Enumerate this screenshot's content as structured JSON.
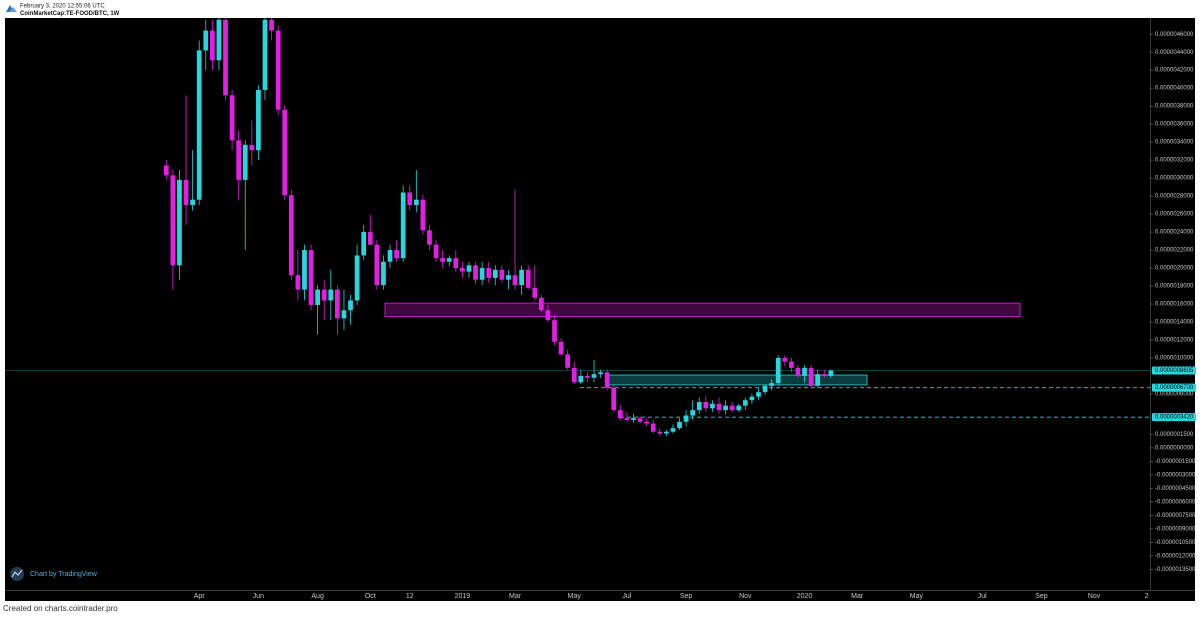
{
  "header": {
    "timestamp": "February 3, 2020 12:55:06 UTC"
  },
  "footer": "Created on charts.cointrader.pro",
  "watermark": "Chart by TradingView",
  "chart_data": {
    "type": "candlestick",
    "title": "CoinMarketCap:TE-FOOD/BTC, 1W",
    "up_color": "#26d7dd",
    "down_color": "#e41fe4",
    "grid": false,
    "categories": [
      null,
      null,
      null,
      null,
      null,
      "Apr",
      null,
      null,
      null,
      null,
      null,
      null,
      null,
      null,
      "Jun",
      null,
      null,
      null,
      null,
      null,
      null,
      null,
      null,
      "Aug",
      null,
      null,
      null,
      null,
      null,
      null,
      null,
      "Oct",
      null,
      null,
      null,
      null,
      null,
      "12",
      null,
      null,
      null,
      null,
      null,
      null,
      null,
      "2019",
      null,
      null,
      null,
      null,
      null,
      null,
      null,
      "Mar",
      null,
      null,
      null,
      null,
      null,
      null,
      null,
      null,
      "May",
      null,
      null,
      null,
      null,
      null,
      null,
      null,
      "Jul",
      null,
      null,
      null,
      null,
      null,
      null,
      null,
      null,
      "Sep",
      null,
      null,
      null,
      null,
      null,
      null,
      null,
      null,
      "Nov",
      null,
      null,
      null,
      null,
      null,
      null,
      null,
      null,
      "2020",
      null,
      null,
      null,
      null,
      null,
      null,
      null,
      "Mar",
      null,
      null,
      null,
      null,
      null,
      null,
      null,
      null,
      "May",
      null,
      null,
      null,
      null,
      null,
      null,
      null,
      null,
      null,
      "Jul",
      null,
      null,
      null,
      null,
      null,
      null,
      null,
      null,
      "Sep",
      null,
      null,
      null,
      null,
      null,
      null,
      null,
      "Nov",
      null,
      null,
      null,
      null,
      null,
      null,
      null,
      "2"
    ],
    "open": [
      3.14e-06,
      3.03e-06,
      2.03e-06,
      2.98e-06,
      2.7e-06,
      2.76e-06,
      4.42e-06,
      4.64e-06,
      4.31e-06,
      4.76e-06,
      3.92e-06,
      3.42e-06,
      2.98e-06,
      3.37e-06,
      3.31e-06,
      3.98e-06,
      4.76e-06,
      4.64e-06,
      3.76e-06,
      2.81e-06,
      1.92e-06,
      1.76e-06,
      2.2e-06,
      1.59e-06,
      1.76e-06,
      1.64e-06,
      1.76e-06,
      1.44e-06,
      1.53e-06,
      1.64e-06,
      2.14e-06,
      2.4e-06,
      2.26e-06,
      1.81e-06,
      2.07e-06,
      2.2e-06,
      2.11e-06,
      2.84e-06,
      2.7e-06,
      2.76e-06,
      2.42e-06,
      2.26e-06,
      2.11e-06,
      2.07e-06,
      2.11e-06,
      2e-06,
      1.96e-06,
      2.03e-06,
      1.87e-06,
      2e-06,
      1.89e-06,
      1.98e-06,
      1.87e-06,
      1.92e-06,
      1.81e-06,
      1.98e-06,
      1.78e-06,
      1.67e-06,
      1.53e-06,
      1.42e-06,
      1.18e-06,
      1.04e-06,
      8.9e-07,
      7.3e-07,
      8e-07,
      7.8e-07,
      8.2e-07,
      8.4e-07,
      6.7e-07,
      4.2e-07,
      3.3e-07,
      3.1e-07,
      3.3e-07,
      2.9e-07,
      2.7e-07,
      1.8e-07,
      1.6e-07,
      1.8e-07,
      2.2e-07,
      2.9e-07,
      3.6e-07,
      4.2e-07,
      5.1e-07,
      4.4e-07,
      4.9e-07,
      4.2e-07,
      4.7e-07,
      4.2e-07,
      4.7e-07,
      5.3e-07,
      5.7e-07,
      6.2e-07,
      6.9e-07,
      7.2e-07,
      1e-06,
      9.6e-07,
      8.9e-07,
      8e-07,
      8.9e-07,
      6.9e-07,
      8.2e-07,
      8e-07,
      null,
      null,
      null,
      null,
      null,
      null,
      null,
      null,
      null,
      null,
      null,
      null,
      null,
      null,
      null,
      null,
      null,
      null,
      null,
      null,
      null,
      null,
      null,
      null,
      null,
      null,
      null,
      null,
      null,
      null,
      null,
      null,
      null,
      null,
      null,
      null,
      null,
      null,
      null,
      null,
      null,
      null,
      null,
      null,
      null,
      null,
      null,
      null
    ],
    "high": [
      3.2e-06,
      3.09e-06,
      3.09e-06,
      3.92e-06,
      3.31e-06,
      4.53e-06,
      4.76e-06,
      4.76e-06,
      4.78e-06,
      4.78e-06,
      3.98e-06,
      3.53e-06,
      3.42e-06,
      3.64e-06,
      4.03e-06,
      4.78e-06,
      4.78e-06,
      4.7e-06,
      3.81e-06,
      2.87e-06,
      2.2e-06,
      2.26e-06,
      2.26e-06,
      1.81e-06,
      1.87e-06,
      1.98e-06,
      1.81e-06,
      1.76e-06,
      1.7e-06,
      2.26e-06,
      2.48e-06,
      2.59e-06,
      2.31e-06,
      2.14e-06,
      2.26e-06,
      2.31e-06,
      2.92e-06,
      2.92e-06,
      3.09e-06,
      2.81e-06,
      2.48e-06,
      2.31e-06,
      2.2e-06,
      2.14e-06,
      2.2e-06,
      2.07e-06,
      2.07e-06,
      2.07e-06,
      2.07e-06,
      2.07e-06,
      2.03e-06,
      2.03e-06,
      1.98e-06,
      2.87e-06,
      2.03e-06,
      2.03e-06,
      2.03e-06,
      1.7e-06,
      1.59e-06,
      1.48e-06,
      1.22e-06,
      1.09e-06,
      9.6e-07,
      8.7e-07,
      8.4e-07,
      9.8e-07,
      8.7e-07,
      8.7e-07,
      7e-07,
      4.8e-07,
      4e-07,
      3.8e-07,
      3.6e-07,
      3.3e-07,
      3.1e-07,
      2.2e-07,
      2e-07,
      2.6e-07,
      3.3e-07,
      4.2e-07,
      5.3e-07,
      5.6e-07,
      5.8e-07,
      5.3e-07,
      5.6e-07,
      5.3e-07,
      5.1e-07,
      4.9e-07,
      5.6e-07,
      6e-07,
      6.7e-07,
      7.1e-07,
      7.6e-07,
      1.03e-06,
      1.03e-06,
      1e-06,
      9.2e-07,
      9.2e-07,
      9.2e-07,
      8.7e-07,
      8.7e-07,
      8.7e-07,
      null,
      null,
      null,
      null,
      null,
      null,
      null,
      null,
      null,
      null,
      null,
      null,
      null,
      null,
      null,
      null,
      null,
      null,
      null,
      null,
      null,
      null,
      null,
      null,
      null,
      null,
      null,
      null,
      null,
      null,
      null,
      null,
      null,
      null,
      null,
      null,
      null,
      null,
      null,
      null,
      null,
      null,
      null,
      null,
      null,
      null,
      null,
      null
    ],
    "low": [
      2.98e-06,
      1.76e-06,
      1.87e-06,
      2.48e-06,
      2.64e-06,
      2.7e-06,
      4.2e-06,
      4.2e-06,
      4.2e-06,
      3.87e-06,
      3.31e-06,
      2.76e-06,
      2.2e-06,
      3.14e-06,
      3.2e-06,
      3.87e-06,
      4.53e-06,
      3.7e-06,
      2.76e-06,
      1.87e-06,
      1.64e-06,
      1.64e-06,
      1.53e-06,
      1.26e-06,
      1.42e-06,
      1.42e-06,
      1.26e-06,
      1.31e-06,
      1.37e-06,
      1.59e-06,
      2.09e-06,
      2.26e-06,
      1.76e-06,
      1.76e-06,
      2e-06,
      2.07e-06,
      2.07e-06,
      2.64e-06,
      2.62e-06,
      2.37e-06,
      2.2e-06,
      2.07e-06,
      2e-06,
      2.02e-06,
      1.96e-06,
      1.89e-06,
      1.89e-06,
      1.82e-06,
      1.81e-06,
      1.84e-06,
      1.81e-06,
      1.84e-06,
      1.76e-06,
      1.76e-06,
      1.7e-06,
      1.76e-06,
      1.64e-06,
      1.51e-06,
      1.4e-06,
      1.14e-06,
      1.02e-06,
      8.7e-07,
      7.1e-07,
      7.1e-07,
      7.3e-07,
      7.3e-07,
      7.8e-07,
      6.4e-07,
      4e-07,
      3.1e-07,
      2.9e-07,
      2.8e-07,
      2.7e-07,
      2.4e-07,
      1.6e-07,
      1.3e-07,
      1.3e-07,
      1.6e-07,
      2e-07,
      2.4e-07,
      3.1e-07,
      3.8e-07,
      4e-07,
      4e-07,
      3.8e-07,
      3.7e-07,
      4e-07,
      4e-07,
      4.2e-07,
      4.9e-07,
      5.3e-07,
      5.9e-07,
      6.4e-07,
      6.9e-07,
      9.1e-07,
      8.4e-07,
      7.8e-07,
      7.3e-07,
      6.7e-07,
      6.7e-07,
      7.8e-07,
      7.8e-07,
      null,
      null,
      null,
      null,
      null,
      null,
      null,
      null,
      null,
      null,
      null,
      null,
      null,
      null,
      null,
      null,
      null,
      null,
      null,
      null,
      null,
      null,
      null,
      null,
      null,
      null,
      null,
      null,
      null,
      null,
      null,
      null,
      null,
      null,
      null,
      null,
      null,
      null,
      null,
      null,
      null,
      null,
      null,
      null,
      null,
      null,
      null,
      null
    ],
    "close": [
      3.03e-06,
      2.03e-06,
      2.98e-06,
      2.7e-06,
      2.76e-06,
      4.42e-06,
      4.64e-06,
      4.31e-06,
      4.76e-06,
      3.92e-06,
      3.42e-06,
      2.98e-06,
      3.37e-06,
      3.31e-06,
      3.98e-06,
      4.76e-06,
      4.64e-06,
      3.76e-06,
      2.81e-06,
      1.92e-06,
      1.76e-06,
      2.2e-06,
      1.59e-06,
      1.76e-06,
      1.64e-06,
      1.76e-06,
      1.44e-06,
      1.53e-06,
      1.64e-06,
      2.14e-06,
      2.4e-06,
      2.26e-06,
      1.81e-06,
      2.07e-06,
      2.2e-06,
      2.11e-06,
      2.84e-06,
      2.7e-06,
      2.76e-06,
      2.42e-06,
      2.26e-06,
      2.11e-06,
      2.07e-06,
      2.11e-06,
      2e-06,
      1.96e-06,
      2.03e-06,
      1.87e-06,
      2e-06,
      1.89e-06,
      1.98e-06,
      1.87e-06,
      1.92e-06,
      1.81e-06,
      1.98e-06,
      1.78e-06,
      1.67e-06,
      1.53e-06,
      1.42e-06,
      1.18e-06,
      1.04e-06,
      8.9e-07,
      7.3e-07,
      8e-07,
      7.8e-07,
      8.2e-07,
      8.4e-07,
      6.7e-07,
      4.2e-07,
      3.3e-07,
      3.1e-07,
      3.3e-07,
      2.9e-07,
      2.7e-07,
      1.8e-07,
      1.6e-07,
      1.8e-07,
      2.2e-07,
      2.9e-07,
      3.6e-07,
      4.2e-07,
      5.1e-07,
      4.4e-07,
      4.9e-07,
      4.2e-07,
      4.7e-07,
      4.2e-07,
      4.7e-07,
      5.3e-07,
      5.7e-07,
      6.2e-07,
      6.9e-07,
      7.2e-07,
      1e-06,
      9.6e-07,
      8.9e-07,
      8e-07,
      8.9e-07,
      6.9e-07,
      8.2e-07,
      8e-07,
      8.6e-07,
      null,
      null,
      null,
      null,
      null,
      null,
      null,
      null,
      null,
      null,
      null,
      null,
      null,
      null,
      null,
      null,
      null,
      null,
      null,
      null,
      null,
      null,
      null,
      null,
      null,
      null,
      null,
      null,
      null,
      null,
      null,
      null,
      null,
      null,
      null,
      null,
      null,
      null,
      null,
      null,
      null,
      null,
      null,
      null,
      null,
      null,
      null,
      null
    ],
    "ylim": [
      -1.58e-06,
      4.78e-06
    ],
    "yticks": [
      {
        "value": 4.6e-06,
        "label": "0.0000046000"
      },
      {
        "value": 4.4e-06,
        "label": "0.0000044000"
      },
      {
        "value": 4.2e-06,
        "label": "0.0000042000"
      },
      {
        "value": 4e-06,
        "label": "0.0000040000"
      },
      {
        "value": 3.8e-06,
        "label": "0.0000038000"
      },
      {
        "value": 3.6e-06,
        "label": "0.0000036000"
      },
      {
        "value": 3.4e-06,
        "label": "0.0000034000"
      },
      {
        "value": 3.2e-06,
        "label": "0.0000032000"
      },
      {
        "value": 3e-06,
        "label": "0.0000030000"
      },
      {
        "value": 2.8e-06,
        "label": "0.0000028000"
      },
      {
        "value": 2.6e-06,
        "label": "0.0000026000"
      },
      {
        "value": 2.4e-06,
        "label": "0.0000024000"
      },
      {
        "value": 2.2e-06,
        "label": "0.0000022000"
      },
      {
        "value": 2e-06,
        "label": "0.0000020000"
      },
      {
        "value": 1.8e-06,
        "label": "0.0000018000"
      },
      {
        "value": 1.6e-06,
        "label": "0.0000016000"
      },
      {
        "value": 1.4e-06,
        "label": "0.0000014000"
      },
      {
        "value": 1.2e-06,
        "label": "0.0000012000"
      },
      {
        "value": 1e-06,
        "label": "0.0000010000"
      },
      {
        "value": 6e-07,
        "label": "0.0000006000"
      },
      {
        "value": 1.5e-07,
        "label": "0.0000001500"
      },
      {
        "value": 0,
        "label": "0.0000000000"
      },
      {
        "value": -1.5e-07,
        "label": "-0.0000001500"
      },
      {
        "value": -3e-07,
        "label": "-0.0000003000"
      },
      {
        "value": -4.5e-07,
        "label": "-0.0000004500"
      },
      {
        "value": -6e-07,
        "label": "-0.0000006000"
      },
      {
        "value": -7.5e-07,
        "label": "-0.0000007500"
      },
      {
        "value": -9e-07,
        "label": "-0.0000009000"
      },
      {
        "value": -1.05e-06,
        "label": "-0.0000010500"
      },
      {
        "value": -1.2e-06,
        "label": "-0.0000012000"
      },
      {
        "value": -1.35e-06,
        "label": "-0.0000013500"
      }
    ],
    "price_labels": [
      {
        "value": 8.605e-07,
        "label": "0.0000008605",
        "color": "#26d7dd",
        "line": "solid"
      },
      {
        "value": 6.7e-07,
        "label": "0.0000006700",
        "color": "#26d7dd",
        "line": "dashed"
      },
      {
        "value": 3.42e-07,
        "label": "0.0000003420",
        "color": "#26d7dd",
        "line": "dashed"
      }
    ],
    "zones": [
      {
        "low": 1.46e-06,
        "high": 1.61e-06,
        "color": "#e41fe4"
      },
      {
        "low": 7e-07,
        "high": 8.1e-07,
        "color": "#26d7dd"
      }
    ]
  }
}
